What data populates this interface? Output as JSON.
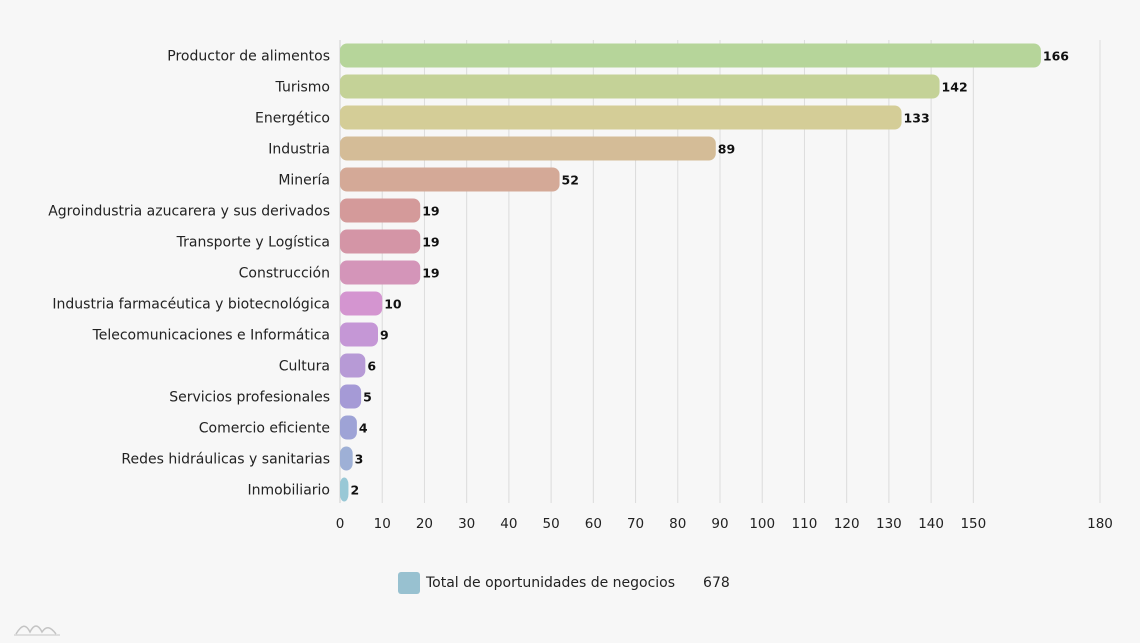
{
  "chart_data": {
    "type": "bar",
    "orientation": "horizontal",
    "categories": [
      "Productor de alimentos",
      "Turismo",
      "Energético",
      "Industria",
      "Minería",
      "Agroindustria azucarera y sus derivados",
      "Transporte y Logística",
      "Construcción",
      "Industria farmacéutica y biotecnológica",
      "Telecomunicaciones e Informática",
      "Cultura",
      "Servicios profesionales",
      "Comercio eficiente",
      "Redes hidráulicas y sanitarias",
      "Inmobiliario"
    ],
    "values": [
      166,
      142,
      133,
      89,
      52,
      19,
      19,
      19,
      10,
      9,
      6,
      5,
      4,
      3,
      2
    ],
    "value_labels": [
      "166",
      "142",
      "133",
      "89",
      "52",
      "19",
      "19",
      "19",
      "10",
      "9",
      "6",
      "5",
      "4",
      "3",
      "2"
    ],
    "bar_colors": [
      "#b6d59a",
      "#c4d297",
      "#d4cd97",
      "#d4bc97",
      "#d4a997",
      "#d49a9a",
      "#d495a6",
      "#d495b9",
      "#d495d0",
      "#c597d6",
      "#b79ad6",
      "#a59ad6",
      "#9ea3d6",
      "#9eb0d6",
      "#98c8d6"
    ],
    "x_ticks": [
      0,
      10,
      20,
      30,
      40,
      50,
      60,
      70,
      80,
      90,
      100,
      110,
      120,
      130,
      140,
      150,
      180
    ],
    "x_tick_labels": [
      "0",
      "10",
      "20",
      "30",
      "40",
      "50",
      "60",
      "70",
      "80",
      "90",
      "100",
      "110",
      "120",
      "130",
      "140",
      "150",
      "180"
    ],
    "xlim": [
      0,
      180
    ],
    "grid": true,
    "legend_placement": "bottom-center",
    "series": [
      {
        "name": "Total de oportunidades de negocios",
        "total": "678",
        "color": "#98c1d0"
      }
    ]
  },
  "legend": {
    "label": "Total de oportunidades de negocios",
    "total": "678",
    "color": "#98c1d0"
  },
  "watermark": {
    "icon": "brand-logo-icon"
  }
}
